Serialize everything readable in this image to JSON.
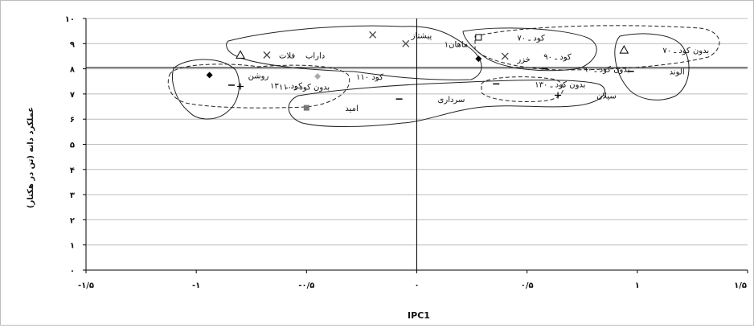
{
  "chart_data": {
    "type": "scatter",
    "title": "",
    "xlabel": "IPC1",
    "ylabel": "عملکرد دانه (تن در هکتار)",
    "xlim": [
      -1.5,
      1.5
    ],
    "ylim": [
      0,
      10
    ],
    "x_ticks": [
      "-۱/۵",
      "-۱",
      "-۰/۵",
      "۰",
      "۰/۵",
      "۱",
      "۱/۵"
    ],
    "y_ticks": [
      "۰",
      "۱",
      "۲",
      "۳",
      "۴",
      "۵",
      "۶",
      "۷",
      "۸",
      "۹",
      "۱۰"
    ],
    "grid": "horizontal",
    "reference_lines": {
      "x": 0,
      "y": 8.05
    },
    "points": [
      {
        "label": "پیشتاز",
        "marker": "x",
        "x": -0.2,
        "y": 9.35
      },
      {
        "label": "ماهان۱",
        "marker": "x",
        "x": -0.05,
        "y": 9.0
      },
      {
        "label": "داراب",
        "marker": "x",
        "x": -0.68,
        "y": 8.55
      },
      {
        "label": "فلات",
        "marker": "triangle",
        "x": -0.8,
        "y": 8.55
      },
      {
        "label": "روشن",
        "marker": "diamond",
        "x": -0.94,
        "y": 7.75
      },
      {
        "label": "کود ۱۱۰",
        "marker": "diamond-light",
        "x": -0.45,
        "y": 7.7
      },
      {
        "label": "کود ـ ۱۳۰",
        "marker": "dash",
        "x": -0.84,
        "y": 7.35
      },
      {
        "label": "بدون کود ـ ۱۱۰",
        "marker": "plus",
        "x": -0.8,
        "y": 7.3
      },
      {
        "label": "امید",
        "marker": "square",
        "x": -0.5,
        "y": 6.45
      },
      {
        "label": "سرداری",
        "marker": "dash",
        "x": -0.08,
        "y": 6.8
      },
      {
        "label": "کود ـ ۷۰",
        "marker": "square-open",
        "x": 0.28,
        "y": 9.25
      },
      {
        "label": "کود ـ ۹۰",
        "marker": "x",
        "x": 0.4,
        "y": 8.5
      },
      {
        "label": "خزر",
        "marker": "diamond",
        "x": 0.28,
        "y": 8.4
      },
      {
        "label": "بدون کود ـ ۹۰",
        "marker": "dash",
        "x": 0.58,
        "y": 8.0
      },
      {
        "label": "بدون کود ـ ۷۰",
        "marker": "triangle",
        "x": 0.94,
        "y": 8.75
      },
      {
        "label": "الوند",
        "marker": "dash",
        "x": 0.97,
        "y": 7.9
      },
      {
        "label": "بدون کود ـ ۱۳۰",
        "marker": "dash",
        "x": 0.36,
        "y": 7.4
      },
      {
        "label": "سپلان",
        "marker": "plus",
        "x": 0.64,
        "y": 6.95
      }
    ]
  }
}
